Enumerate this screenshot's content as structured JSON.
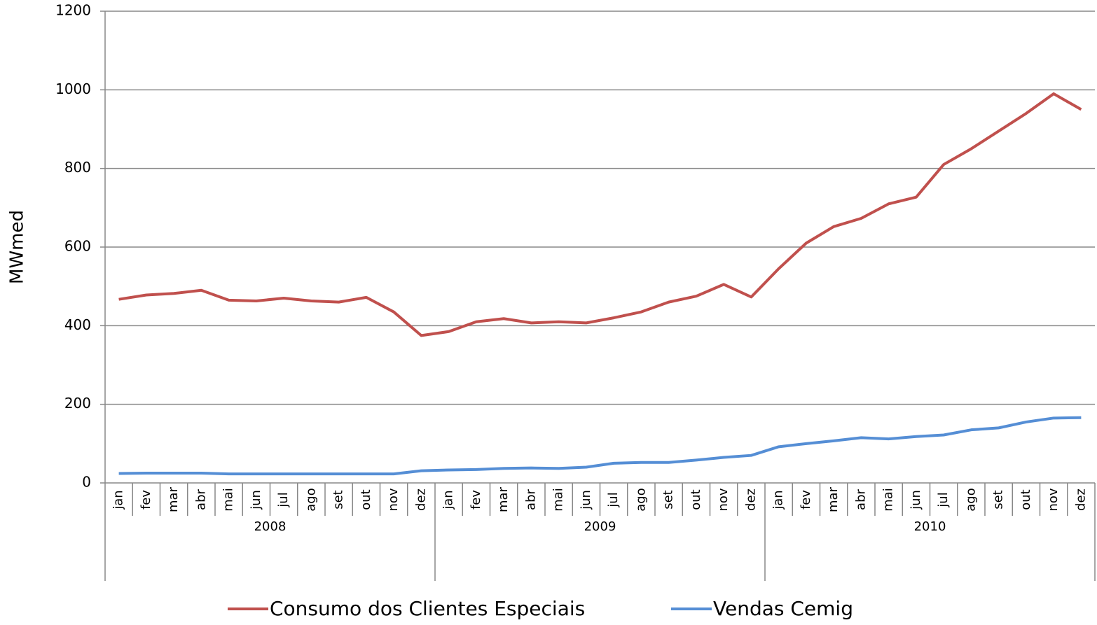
{
  "chart_data": {
    "type": "line",
    "y_label": "MWmed",
    "categories": [
      "jan",
      "fev",
      "mar",
      "abr",
      "mai",
      "jun",
      "jul",
      "ago",
      "set",
      "out",
      "nov",
      "dez",
      "jan",
      "fev",
      "mar",
      "abr",
      "mai",
      "jun",
      "jul",
      "ago",
      "set",
      "out",
      "nov",
      "dez",
      "jan",
      "fev",
      "mar",
      "abr",
      "mai",
      "jun",
      "jul",
      "ago",
      "set",
      "out",
      "nov",
      "dez"
    ],
    "category_groups": [
      "2008",
      "2009",
      "2010"
    ],
    "series": [
      {
        "name": "Consumo dos Clientes Especiais",
        "color": "#c0504d",
        "values": [
          467,
          478,
          482,
          490,
          465,
          463,
          470,
          463,
          460,
          472,
          435,
          375,
          385,
          410,
          418,
          407,
          410,
          407,
          420,
          435,
          460,
          475,
          505,
          473,
          545,
          610,
          652,
          673,
          710,
          727,
          810,
          850,
          895,
          940,
          990,
          950
        ]
      },
      {
        "name": "Vendas Cemig",
        "color": "#558ed5",
        "values": [
          24,
          25,
          25,
          25,
          23,
          23,
          23,
          23,
          23,
          23,
          23,
          31,
          33,
          34,
          37,
          38,
          37,
          40,
          50,
          52,
          52,
          58,
          65,
          70,
          92,
          100,
          107,
          115,
          112,
          118,
          122,
          135,
          140,
          155,
          165,
          166
        ]
      }
    ],
    "ylim": [
      0,
      1200
    ],
    "yticks": [
      0,
      200,
      400,
      600,
      800,
      1000,
      1200
    ],
    "grid": true,
    "legend": "bottom"
  }
}
